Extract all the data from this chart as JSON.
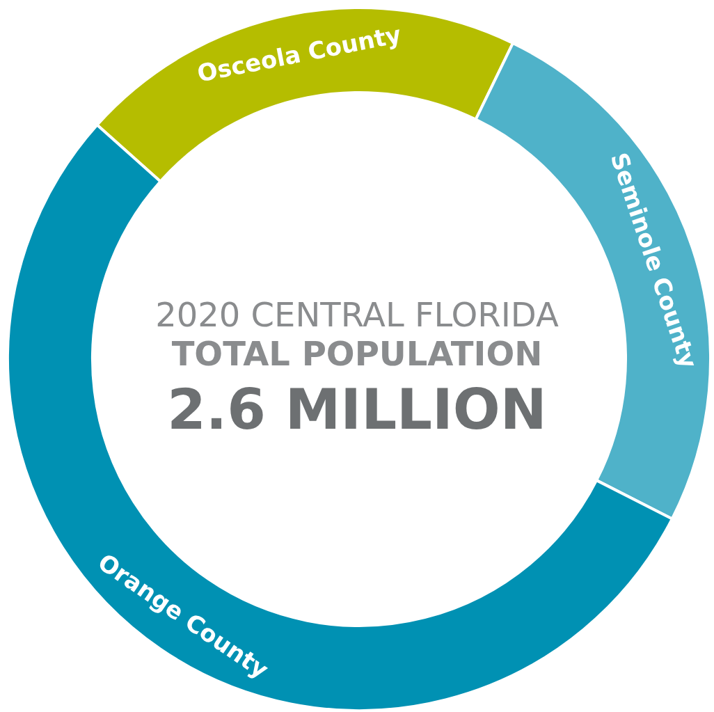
{
  "chart_data": {
    "type": "donut",
    "title": "2020 CENTRAL FLORIDA",
    "subtitle": "TOTAL POPULATION",
    "annotations": [
      "2.6 MILLION"
    ],
    "categories": [
      "Osceola County",
      "Seminole County",
      "Orange County"
    ],
    "values": [
      20.6,
      25.3,
      54.1
    ],
    "colors": [
      "#b5bd00",
      "#4fb2c9",
      "#0091b3"
    ],
    "legend": false
  }
}
